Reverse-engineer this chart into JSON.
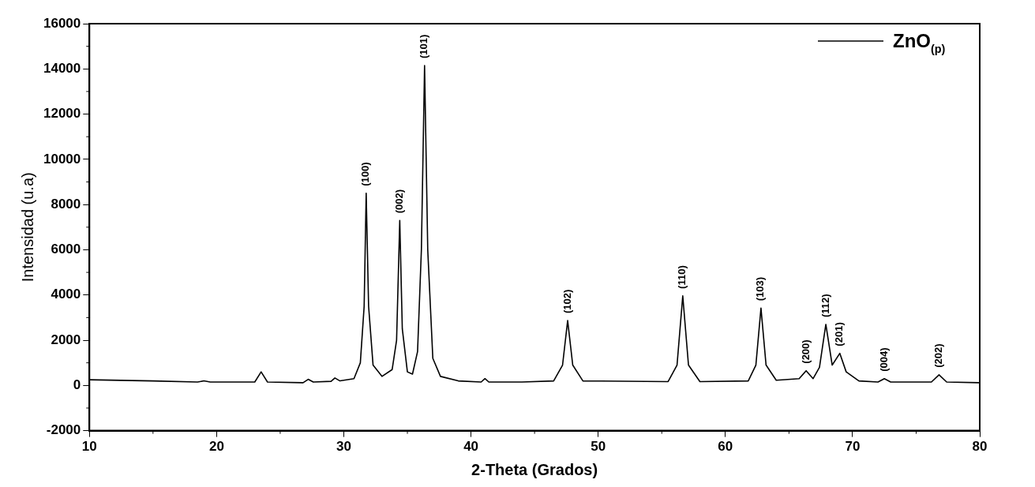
{
  "chart_data": {
    "type": "line",
    "xlabel": "2-Theta (Grados)",
    "ylabel": "Intensidad (u.a)",
    "xlim": [
      10,
      80
    ],
    "xticks": [
      10,
      20,
      30,
      40,
      50,
      60,
      70,
      80
    ],
    "ylim": [
      -2000,
      16000
    ],
    "yticks": [
      -2000,
      0,
      2000,
      4000,
      6000,
      8000,
      10000,
      12000,
      14000,
      16000
    ],
    "grid": false,
    "legend": "top right",
    "marker": "none",
    "line_style": "solid",
    "series": [
      {
        "name": "ZnO$_{(p)}$",
        "color": "#000000",
        "x": [
          10,
          15,
          18.5,
          19,
          19.5,
          23,
          23.5,
          24,
          26.8,
          27.2,
          27.6,
          29,
          29.3,
          29.7,
          30.8,
          31.3,
          31.6,
          31.76,
          31.95,
          32.3,
          33,
          33.8,
          34.15,
          34.4,
          34.6,
          35,
          35.4,
          35.8,
          36.1,
          36.35,
          36.6,
          37,
          37.6,
          39,
          40.8,
          41.1,
          41.4,
          44,
          46.5,
          47.2,
          47.6,
          48,
          48.8,
          55.5,
          56.2,
          56.65,
          57.1,
          58,
          61.8,
          62.4,
          62.8,
          63.2,
          64,
          65.8,
          66.35,
          66.9,
          67.4,
          67.9,
          68.4,
          69,
          69.5,
          70.5,
          72,
          72.5,
          73,
          76.2,
          76.8,
          77.4,
          80
        ],
        "values": [
          250,
          200,
          150,
          200,
          150,
          150,
          600,
          150,
          120,
          270,
          150,
          180,
          330,
          200,
          300,
          1000,
          3500,
          8500,
          3500,
          900,
          400,
          700,
          2000,
          7300,
          2500,
          600,
          500,
          1500,
          6000,
          14150,
          6000,
          1200,
          400,
          200,
          150,
          300,
          150,
          150,
          200,
          900,
          2870,
          900,
          200,
          170,
          900,
          3960,
          900,
          170,
          200,
          900,
          3420,
          900,
          230,
          300,
          650,
          300,
          800,
          2700,
          900,
          1420,
          600,
          200,
          150,
          300,
          150,
          150,
          470,
          150,
          120
        ]
      }
    ],
    "annotations": [
      {
        "text": "(100)",
        "x": 31.76,
        "y": 8500
      },
      {
        "text": "(002)",
        "x": 34.4,
        "y": 7300
      },
      {
        "text": "(101)",
        "x": 36.35,
        "y": 14150
      },
      {
        "text": "(102)",
        "x": 47.6,
        "y": 2870
      },
      {
        "text": "(110)",
        "x": 56.65,
        "y": 3960
      },
      {
        "text": "(103)",
        "x": 62.8,
        "y": 3420
      },
      {
        "text": "(200)",
        "x": 66.35,
        "y": 650
      },
      {
        "text": "(112)",
        "x": 67.9,
        "y": 2700
      },
      {
        "text": "(201)",
        "x": 69,
        "y": 1420
      },
      {
        "text": "(004)",
        "x": 72.5,
        "y": 300
      },
      {
        "text": "(202)",
        "x": 76.8,
        "y": 470
      }
    ]
  }
}
